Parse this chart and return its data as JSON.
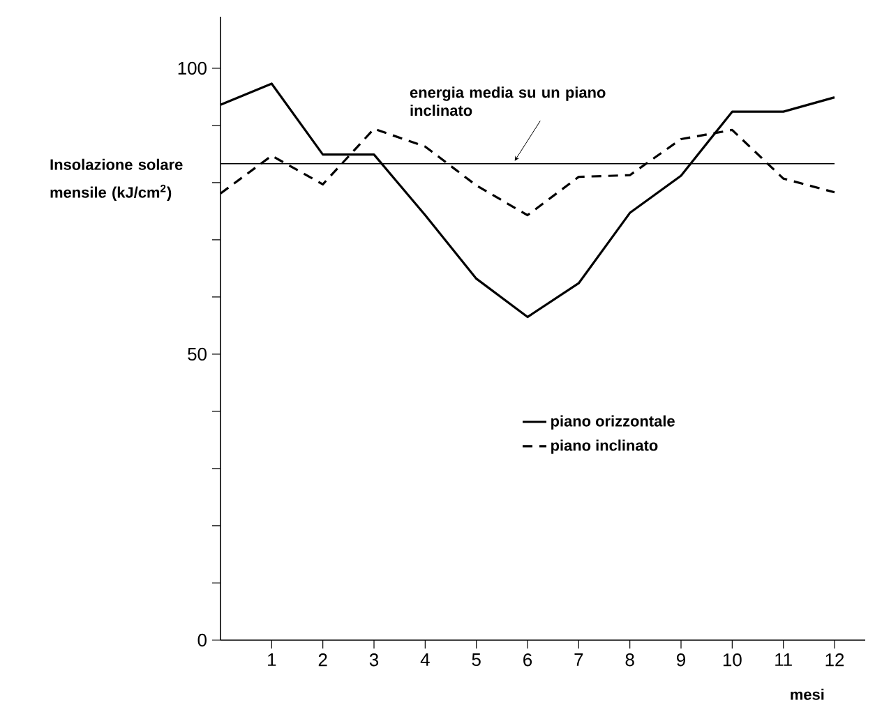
{
  "chart_data": {
    "type": "line",
    "xlabel": "mesi",
    "ylabel": "Insolazione solare mensile (kJ/cm$^{2}$)",
    "x": [
      0,
      1,
      2,
      3,
      4,
      5,
      6,
      7,
      8,
      9,
      10,
      11,
      12
    ],
    "series": [
      {
        "name": "piano orizzontale",
        "color": "#000000",
        "line_style": "solid",
        "values": [
          93.6,
          97.3,
          84.9,
          84.9,
          74.3,
          63.2,
          56.5,
          62.4,
          74.7,
          81.2,
          92.4,
          92.4,
          94.9
        ]
      },
      {
        "name": "piano inclinato",
        "color": "#000000",
        "line_style": "dashed",
        "values": [
          78.1,
          84.7,
          79.7,
          89.4,
          86.3,
          79.5,
          74.3,
          81.0,
          81.3,
          87.6,
          89.2,
          80.7,
          78.3
        ]
      }
    ],
    "xlim": [
      0,
      12.6
    ],
    "ylim": [
      0,
      109
    ],
    "xticks": [
      1,
      2,
      3,
      4,
      5,
      6,
      7,
      8,
      9,
      10,
      11,
      12
    ],
    "yticks": [
      0,
      {
        "value": 10,
        "label": null
      },
      {
        "value": 20,
        "label": null
      },
      {
        "value": 30,
        "label": null
      },
      {
        "value": 40,
        "label": null
      },
      50,
      {
        "value": 60,
        "label": null
      },
      {
        "value": 70,
        "label": null
      },
      {
        "value": 80,
        "label": null
      },
      {
        "value": 90,
        "label": null
      },
      100
    ],
    "ref_lines": [
      {
        "axis": "y",
        "value": 83.3,
        "label": "energia media su un piano inclinato",
        "color": "#000000"
      }
    ],
    "legend": "bottom right"
  }
}
